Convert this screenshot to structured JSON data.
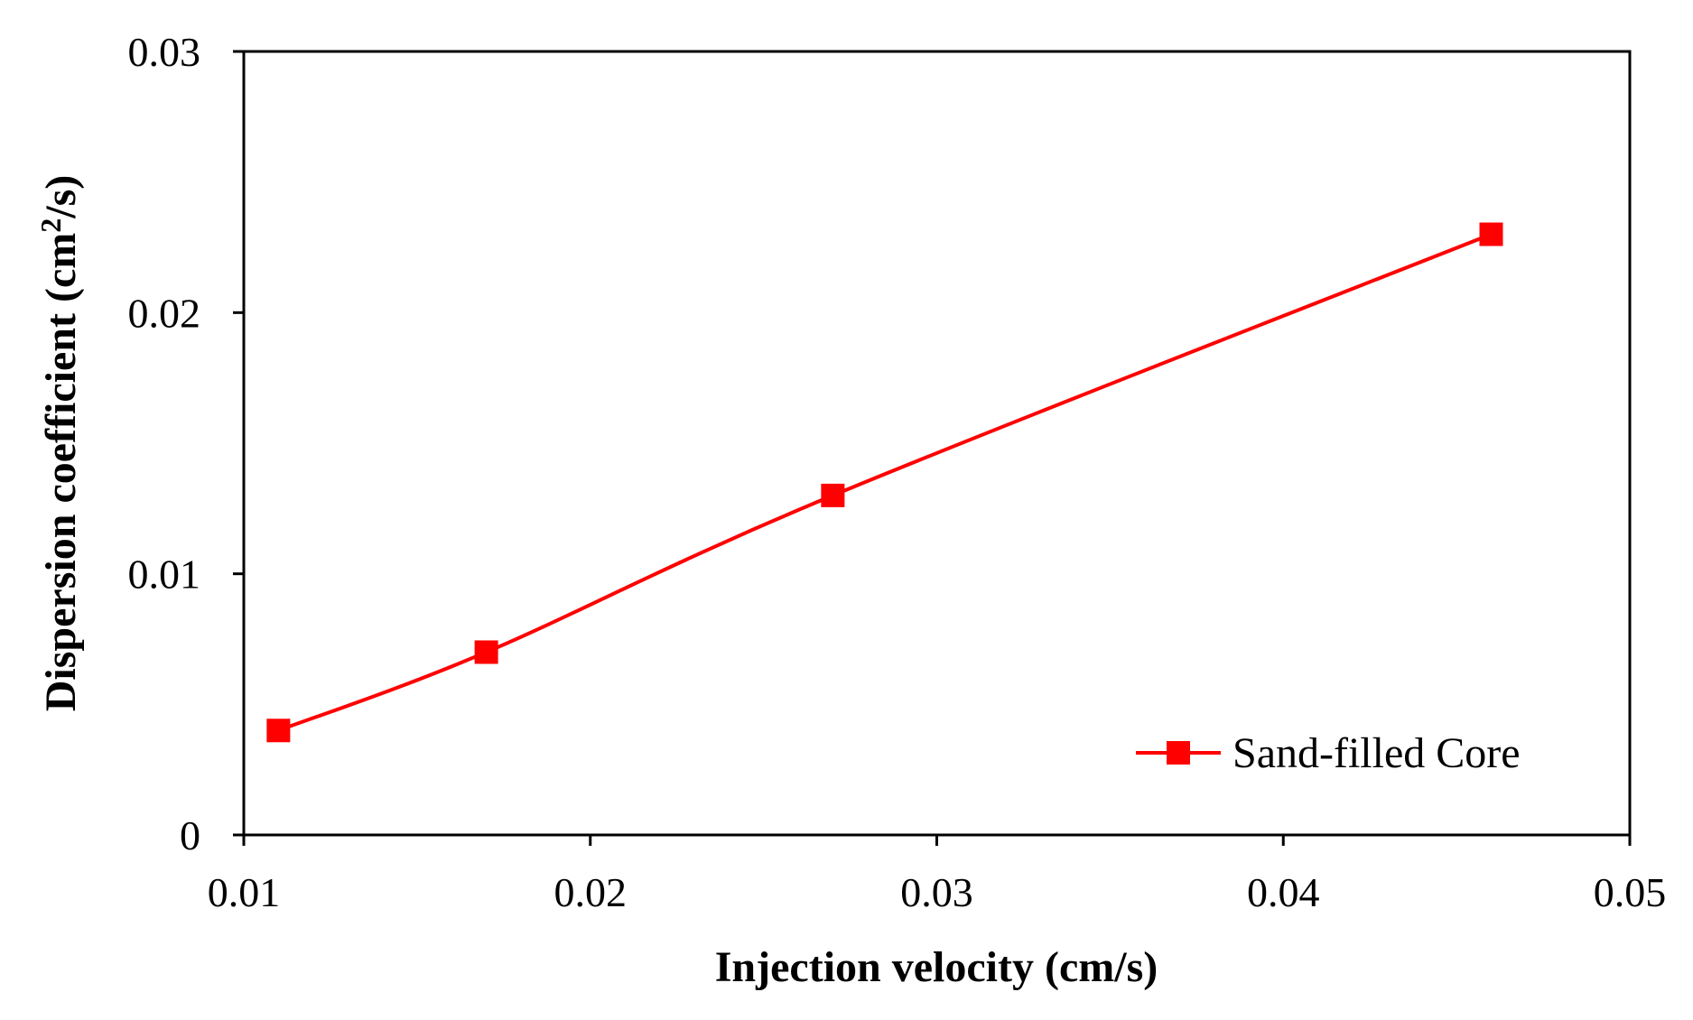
{
  "chart_data": {
    "type": "line",
    "title": "",
    "xlabel": "Injection  velocity (cm/s)",
    "ylabel": {
      "prefix": "Dispersion coefficient (cm",
      "superscript": "2",
      "suffix": "/s)"
    },
    "xlim": [
      0.01,
      0.05
    ],
    "ylim": [
      0,
      0.03
    ],
    "x_ticks": [
      0.01,
      0.02,
      0.03,
      0.04,
      0.05
    ],
    "x_tick_labels": [
      "0.01",
      "0.02",
      "0.03",
      "0.04",
      "0.05"
    ],
    "y_ticks": [
      0,
      0.01,
      0.02,
      0.03
    ],
    "y_tick_labels": [
      "0",
      "0.01",
      "0.02",
      "0.03"
    ],
    "grid": false,
    "legend_position": "bottom-right",
    "series": [
      {
        "name": "Sand-filled Core",
        "color": "#ff0000",
        "marker": "square",
        "x": [
          0.011,
          0.017,
          0.027,
          0.046
        ],
        "y": [
          0.004,
          0.007,
          0.013,
          0.023
        ]
      }
    ]
  }
}
